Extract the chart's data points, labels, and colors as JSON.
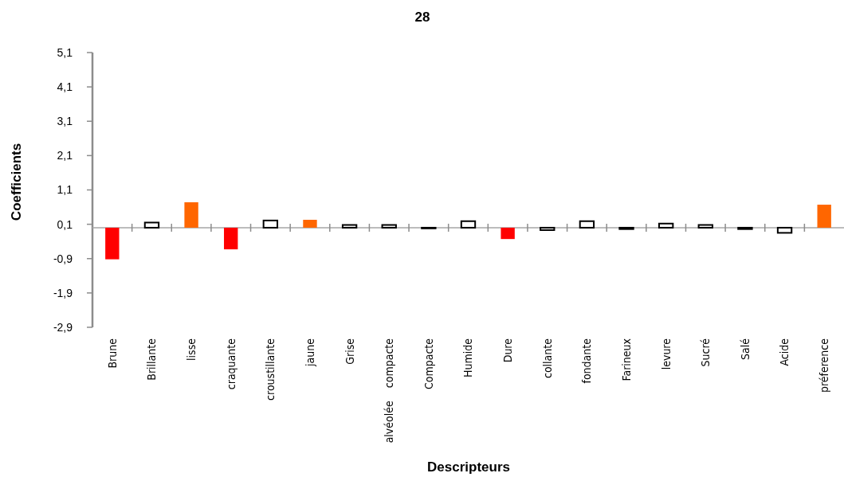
{
  "chart_data": {
    "type": "bar",
    "title": "28",
    "xlabel": "Descripteurs",
    "ylabel": "Coefficients",
    "categories": [
      "Brune",
      "Brillante",
      "lisse",
      "craquante",
      "croustillante",
      "jaune",
      "Grise",
      "alvéolée    compacte",
      "Compacte",
      "Humide",
      "Dure",
      "collante",
      "fondante",
      "Farineux",
      "levure",
      "Sucré",
      "Salé",
      "Acide",
      "préference"
    ],
    "values": [
      -0.92,
      0.15,
      0.74,
      -0.63,
      0.21,
      0.23,
      0.08,
      0.08,
      -0.02,
      0.19,
      -0.33,
      -0.07,
      0.19,
      -0.04,
      0.12,
      0.08,
      -0.04,
      -0.15,
      0.67
    ],
    "colors": [
      "#ff0000",
      "#ffffff",
      "#ff6600",
      "#ff0000",
      "#ffffff",
      "#ff6600",
      "#ffffff",
      "#ffffff",
      "#ffffff",
      "#ffffff",
      "#ff0000",
      "#ffffff",
      "#ffffff",
      "#ffffff",
      "#ffffff",
      "#ffffff",
      "#ffffff",
      "#ffffff",
      "#ff6600"
    ],
    "ylim": [
      -2.9,
      5.1
    ],
    "yticks": [
      {
        "value": -2.9,
        "label": "-2,9"
      },
      {
        "value": -1.9,
        "label": "-1,9"
      },
      {
        "value": -0.9,
        "label": "-0,9"
      },
      {
        "value": 0.1,
        "label": "0,1"
      },
      {
        "value": 1.1,
        "label": "1,1"
      },
      {
        "value": 2.1,
        "label": "2,1"
      },
      {
        "value": 3.1,
        "label": "3,1"
      },
      {
        "value": 4.1,
        "label": "4,1"
      },
      {
        "value": 5.1,
        "label": "5,1"
      }
    ],
    "grid": false
  }
}
